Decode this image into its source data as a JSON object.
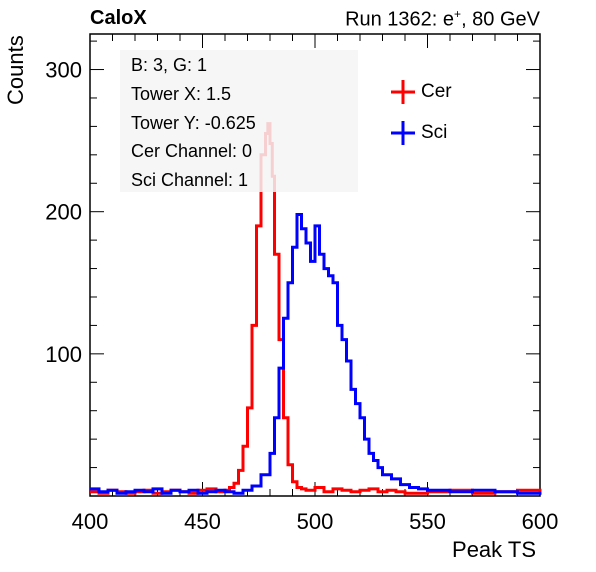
{
  "header": {
    "left": "CaloX",
    "right_prefix": "Run 1362: e",
    "right_sup": "+",
    "right_suffix": ", 80 GeV"
  },
  "info": {
    "lines": [
      "B: 3, G: 1",
      "Tower X: 1.5",
      "Tower Y: -0.625",
      "Cer Channel: 0",
      "Sci Channel: 1"
    ]
  },
  "colors": {
    "cer": "#ff0000",
    "sci": "#0000ff"
  },
  "chart_data": {
    "type": "line",
    "title": "",
    "xlabel": "Peak TS",
    "ylabel": "Counts",
    "xlim": [
      400,
      600
    ],
    "ylim": [
      0,
      325
    ],
    "xticks": [
      400,
      450,
      500,
      550,
      600
    ],
    "yticks": [
      100,
      200,
      300
    ],
    "grid": false,
    "legend_position": "top-right",
    "series": [
      {
        "name": "Cer",
        "color": "#ff0000",
        "x": [
          400,
          404,
          408,
          412,
          416,
          420,
          424,
          428,
          432,
          436,
          440,
          444,
          448,
          452,
          456,
          460,
          462,
          464,
          466,
          468,
          470,
          472,
          474,
          476,
          478,
          479,
          480,
          481,
          482,
          484,
          486,
          488,
          490,
          492,
          494,
          496,
          500,
          504,
          508,
          512,
          516,
          520,
          524,
          528,
          532,
          536,
          540,
          550,
          560,
          570,
          580,
          590,
          600
        ],
        "y": [
          3,
          2,
          4,
          3,
          2,
          3,
          4,
          2,
          3,
          4,
          3,
          2,
          4,
          5,
          3,
          4,
          6,
          9,
          18,
          35,
          62,
          120,
          190,
          240,
          255,
          262,
          248,
          225,
          170,
          110,
          55,
          22,
          10,
          6,
          5,
          4,
          6,
          3,
          5,
          4,
          3,
          4,
          5,
          3,
          4,
          3,
          2,
          3,
          4,
          2,
          3,
          4,
          2
        ]
      },
      {
        "name": "Sci",
        "color": "#0000ff",
        "x": [
          400,
          404,
          408,
          412,
          416,
          420,
          424,
          428,
          432,
          436,
          440,
          444,
          448,
          452,
          456,
          460,
          464,
          468,
          472,
          476,
          480,
          482,
          484,
          486,
          488,
          490,
          492,
          494,
          496,
          498,
          500,
          502,
          504,
          506,
          508,
          510,
          512,
          514,
          516,
          518,
          520,
          522,
          524,
          526,
          528,
          530,
          534,
          538,
          542,
          546,
          550,
          560,
          570,
          580,
          590,
          600
        ],
        "y": [
          5,
          3,
          4,
          2,
          3,
          4,
          3,
          5,
          2,
          4,
          3,
          4,
          2,
          3,
          4,
          3,
          2,
          4,
          7,
          15,
          30,
          55,
          90,
          125,
          150,
          175,
          198,
          188,
          178,
          165,
          190,
          170,
          160,
          155,
          150,
          120,
          110,
          95,
          75,
          65,
          55,
          40,
          30,
          25,
          20,
          15,
          12,
          8,
          6,
          5,
          4,
          3,
          4,
          3,
          2,
          3
        ]
      }
    ]
  }
}
